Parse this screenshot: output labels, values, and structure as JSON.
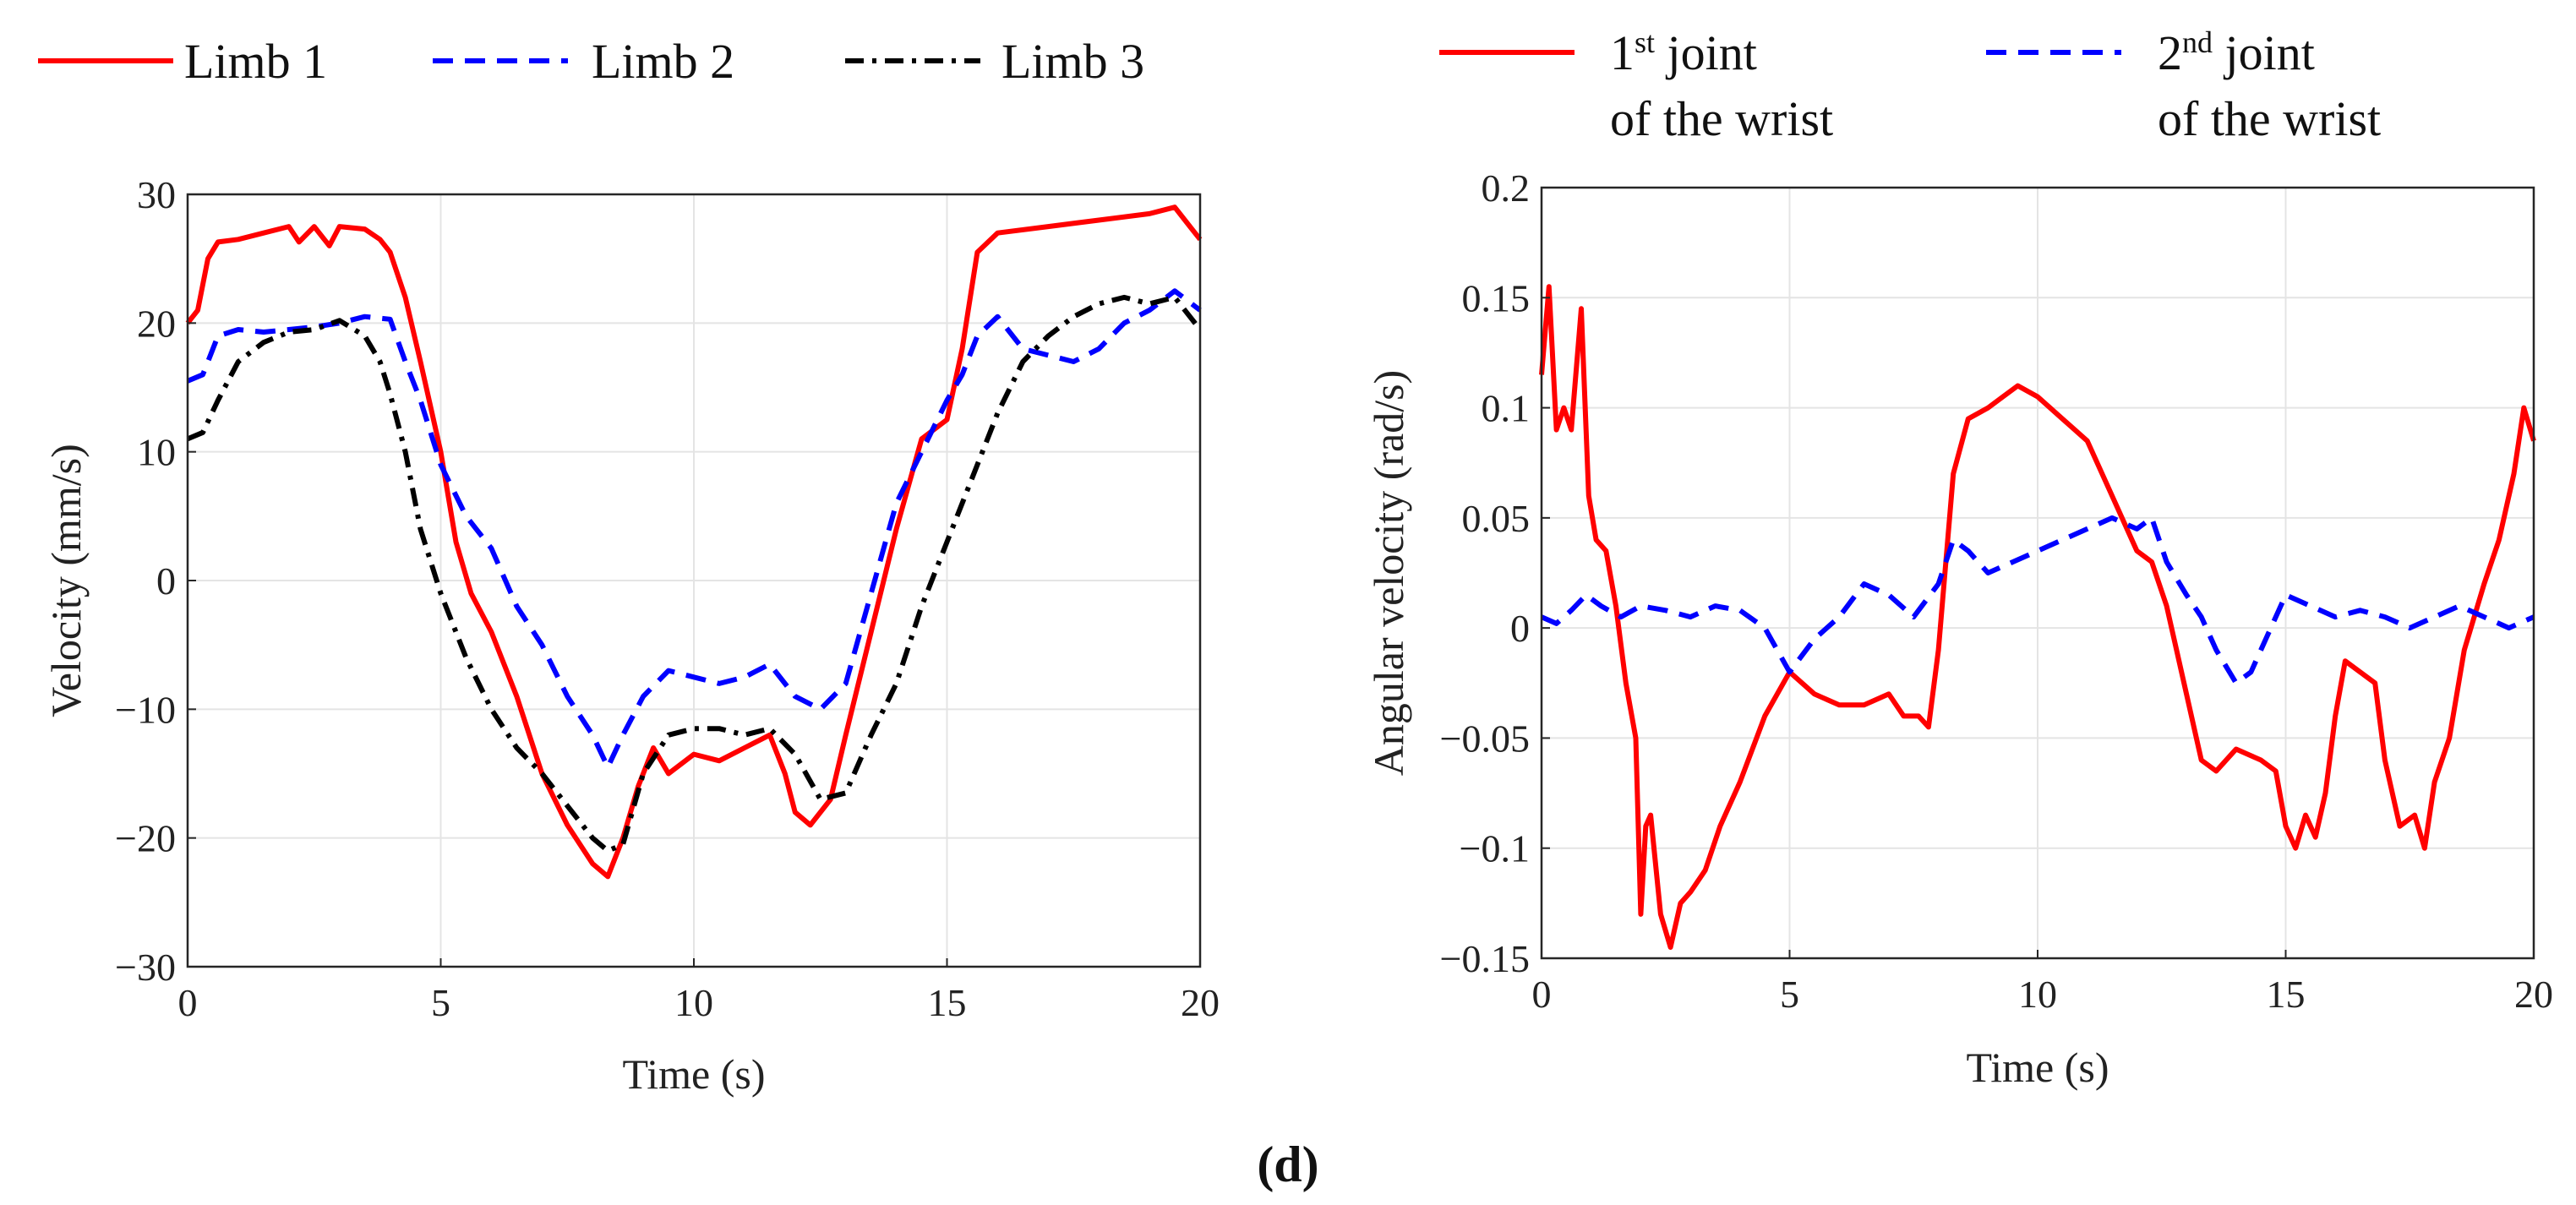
{
  "caption": "(d)",
  "chart_data": [
    {
      "type": "line",
      "title": "",
      "xlabel": "Time (s)",
      "ylabel": "Velocity (mm/s)",
      "xlim": [
        0,
        20
      ],
      "ylim": [
        -30,
        30
      ],
      "xticks": [
        "0",
        "5",
        "10",
        "15",
        "20"
      ],
      "yticks": [
        "30",
        "20",
        "10",
        "0",
        "−10",
        "−20",
        "−30"
      ],
      "grid": true,
      "legend_position": "top",
      "series": [
        {
          "name": "Limb 1",
          "color": "#ff0000",
          "style": "solid",
          "x": [
            0,
            0.2,
            0.4,
            0.6,
            1,
            1.5,
            2,
            2.2,
            2.5,
            2.8,
            3,
            3.5,
            3.8,
            4,
            4.3,
            4.6,
            5,
            5.3,
            5.6,
            6,
            6.5,
            7,
            7.5,
            8,
            8.3,
            8.6,
            8.9,
            9.2,
            9.5,
            10,
            10.5,
            11,
            11.5,
            11.8,
            12,
            12.3,
            12.7,
            13,
            13.5,
            14,
            14.5,
            15,
            15.3,
            15.6,
            16,
            17,
            18,
            19,
            19.5,
            19.8,
            20
          ],
          "values": [
            20,
            21,
            25,
            26.3,
            26.5,
            27,
            27.5,
            26.3,
            27.5,
            26,
            27.5,
            27.3,
            26.5,
            25.5,
            22,
            17,
            10,
            3,
            -1,
            -4,
            -9,
            -15,
            -19,
            -22,
            -23,
            -20,
            -16,
            -13,
            -15,
            -13.5,
            -14,
            -13,
            -12,
            -15,
            -18,
            -19,
            -17,
            -12,
            -4,
            4,
            11,
            12.5,
            18,
            25.5,
            27,
            27.5,
            28,
            28.5,
            29,
            27.5,
            26.5
          ]
        },
        {
          "name": "Limb 2",
          "color": "#0000ff",
          "style": "dashed",
          "x": [
            0,
            0.3,
            0.6,
            1,
            1.5,
            2,
            2.5,
            3,
            3.5,
            4,
            4.3,
            4.6,
            5,
            5.5,
            6,
            6.5,
            7,
            7.5,
            8,
            8.3,
            8.6,
            9,
            9.5,
            10,
            10.5,
            11,
            11.5,
            12,
            12.5,
            13,
            13.5,
            14,
            14.5,
            15,
            15.3,
            15.6,
            16,
            16.5,
            17,
            17.5,
            18,
            18.5,
            19,
            19.5,
            20
          ],
          "values": [
            15.5,
            16,
            19,
            19.5,
            19.3,
            19.5,
            19.7,
            20,
            20.5,
            20.3,
            17,
            14,
            9,
            5,
            2.5,
            -2,
            -5,
            -9,
            -12,
            -14.5,
            -12,
            -9,
            -7,
            -7.5,
            -8,
            -7.5,
            -6.5,
            -9,
            -10,
            -8,
            -1,
            6,
            10,
            14,
            16,
            19,
            20.5,
            18,
            17.5,
            17,
            18,
            20,
            21,
            22.5,
            21
          ]
        },
        {
          "name": "Limb 3",
          "color": "#000000",
          "style": "dashdot",
          "x": [
            0,
            0.3,
            0.6,
            1,
            1.5,
            2,
            2.5,
            3,
            3.5,
            3.8,
            4,
            4.3,
            4.6,
            5,
            5.5,
            6,
            6.5,
            7,
            7.5,
            8,
            8.3,
            8.6,
            9,
            9.5,
            10,
            10.5,
            11,
            11.5,
            12,
            12.5,
            13,
            13.5,
            14,
            14.5,
            15,
            15.5,
            16,
            16.5,
            17,
            17.5,
            18,
            18.5,
            19,
            19.5,
            20
          ],
          "values": [
            11,
            11.5,
            14,
            17,
            18.5,
            19.3,
            19.5,
            20.2,
            19,
            17,
            14.5,
            10,
            4,
            -1,
            -6,
            -10,
            -13,
            -15,
            -17.5,
            -20,
            -21,
            -20.5,
            -15,
            -12,
            -11.5,
            -11.5,
            -12,
            -11.5,
            -13.5,
            -17,
            -16.5,
            -12,
            -8,
            -2,
            3,
            8,
            13,
            17,
            19,
            20.5,
            21.5,
            22,
            21.5,
            22,
            19.5
          ]
        }
      ]
    },
    {
      "type": "line",
      "title": "",
      "xlabel": "Time (s)",
      "ylabel": "Angular velocity (rad/s)",
      "xlim": [
        0,
        20
      ],
      "ylim": [
        -0.15,
        0.2
      ],
      "xticks": [
        "0",
        "5",
        "10",
        "15",
        "20"
      ],
      "yticks": [
        "0.2",
        "0.15",
        "0.1",
        "0.05",
        "0",
        "−0.05",
        "−0.1",
        "−0.15"
      ],
      "grid": true,
      "legend_position": "top",
      "series": [
        {
          "name_line1": "1",
          "name_sup": "st",
          "name_rest": " joint",
          "name_line2": "of the wrist",
          "color": "#ff0000",
          "style": "solid",
          "x": [
            0,
            0.15,
            0.3,
            0.45,
            0.6,
            0.8,
            0.95,
            1.1,
            1.3,
            1.5,
            1.7,
            1.9,
            2,
            2.1,
            2.2,
            2.4,
            2.6,
            2.8,
            3,
            3.3,
            3.6,
            4,
            4.5,
            5,
            5.5,
            6,
            6.5,
            7,
            7.3,
            7.6,
            7.8,
            8,
            8.3,
            8.6,
            9,
            9.3,
            9.6,
            10,
            10.5,
            11,
            11.5,
            12,
            12.3,
            12.6,
            13,
            13.3,
            13.6,
            14,
            14.5,
            14.8,
            15,
            15.2,
            15.4,
            15.6,
            15.8,
            16,
            16.2,
            16.5,
            16.8,
            17,
            17.3,
            17.6,
            17.8,
            18,
            18.3,
            18.6,
            19,
            19.3,
            19.6,
            19.8,
            20
          ],
          "values": [
            0.115,
            0.155,
            0.09,
            0.1,
            0.09,
            0.145,
            0.06,
            0.04,
            0.035,
            0.01,
            -0.025,
            -0.05,
            -0.13,
            -0.09,
            -0.085,
            -0.13,
            -0.145,
            -0.125,
            -0.12,
            -0.11,
            -0.09,
            -0.07,
            -0.04,
            -0.02,
            -0.03,
            -0.035,
            -0.035,
            -0.03,
            -0.04,
            -0.04,
            -0.045,
            -0.01,
            0.07,
            0.095,
            0.1,
            0.105,
            0.11,
            0.105,
            0.095,
            0.085,
            0.06,
            0.035,
            0.03,
            0.01,
            -0.03,
            -0.06,
            -0.065,
            -0.055,
            -0.06,
            -0.065,
            -0.09,
            -0.1,
            -0.085,
            -0.095,
            -0.075,
            -0.04,
            -0.015,
            -0.02,
            -0.025,
            -0.06,
            -0.09,
            -0.085,
            -0.1,
            -0.07,
            -0.05,
            -0.01,
            0.02,
            0.04,
            0.07,
            0.1,
            0.085
          ]
        },
        {
          "name_line1": "2",
          "name_sup": "nd",
          "name_rest": " joint",
          "name_line2": "of the wrist",
          "color": "#0000ff",
          "style": "dashed",
          "x": [
            0,
            0.3,
            0.6,
            0.9,
            1.2,
            1.6,
            2,
            2.5,
            3,
            3.5,
            4,
            4.5,
            5,
            5.5,
            6,
            6.5,
            7,
            7.5,
            8,
            8.3,
            8.6,
            9,
            9.5,
            10,
            10.5,
            11,
            11.5,
            12,
            12.3,
            12.6,
            13,
            13.3,
            13.6,
            14,
            14.3,
            14.6,
            15,
            15.5,
            16,
            16.5,
            17,
            17.5,
            18,
            18.5,
            19,
            19.5,
            20
          ],
          "values": [
            0.005,
            0.002,
            0.008,
            0.015,
            0.01,
            0.005,
            0.01,
            0.008,
            0.005,
            0.01,
            0.008,
            0.0,
            -0.02,
            -0.005,
            0.005,
            0.02,
            0.015,
            0.005,
            0.02,
            0.04,
            0.035,
            0.025,
            0.03,
            0.035,
            0.04,
            0.045,
            0.05,
            0.045,
            0.05,
            0.03,
            0.015,
            0.005,
            -0.01,
            -0.025,
            -0.02,
            -0.005,
            0.015,
            0.01,
            0.005,
            0.008,
            0.005,
            0.0,
            0.005,
            0.01,
            0.005,
            0.0,
            0.005
          ]
        }
      ]
    }
  ],
  "legend_left": [
    "Limb 1",
    "Limb 2",
    "Limb 3"
  ]
}
